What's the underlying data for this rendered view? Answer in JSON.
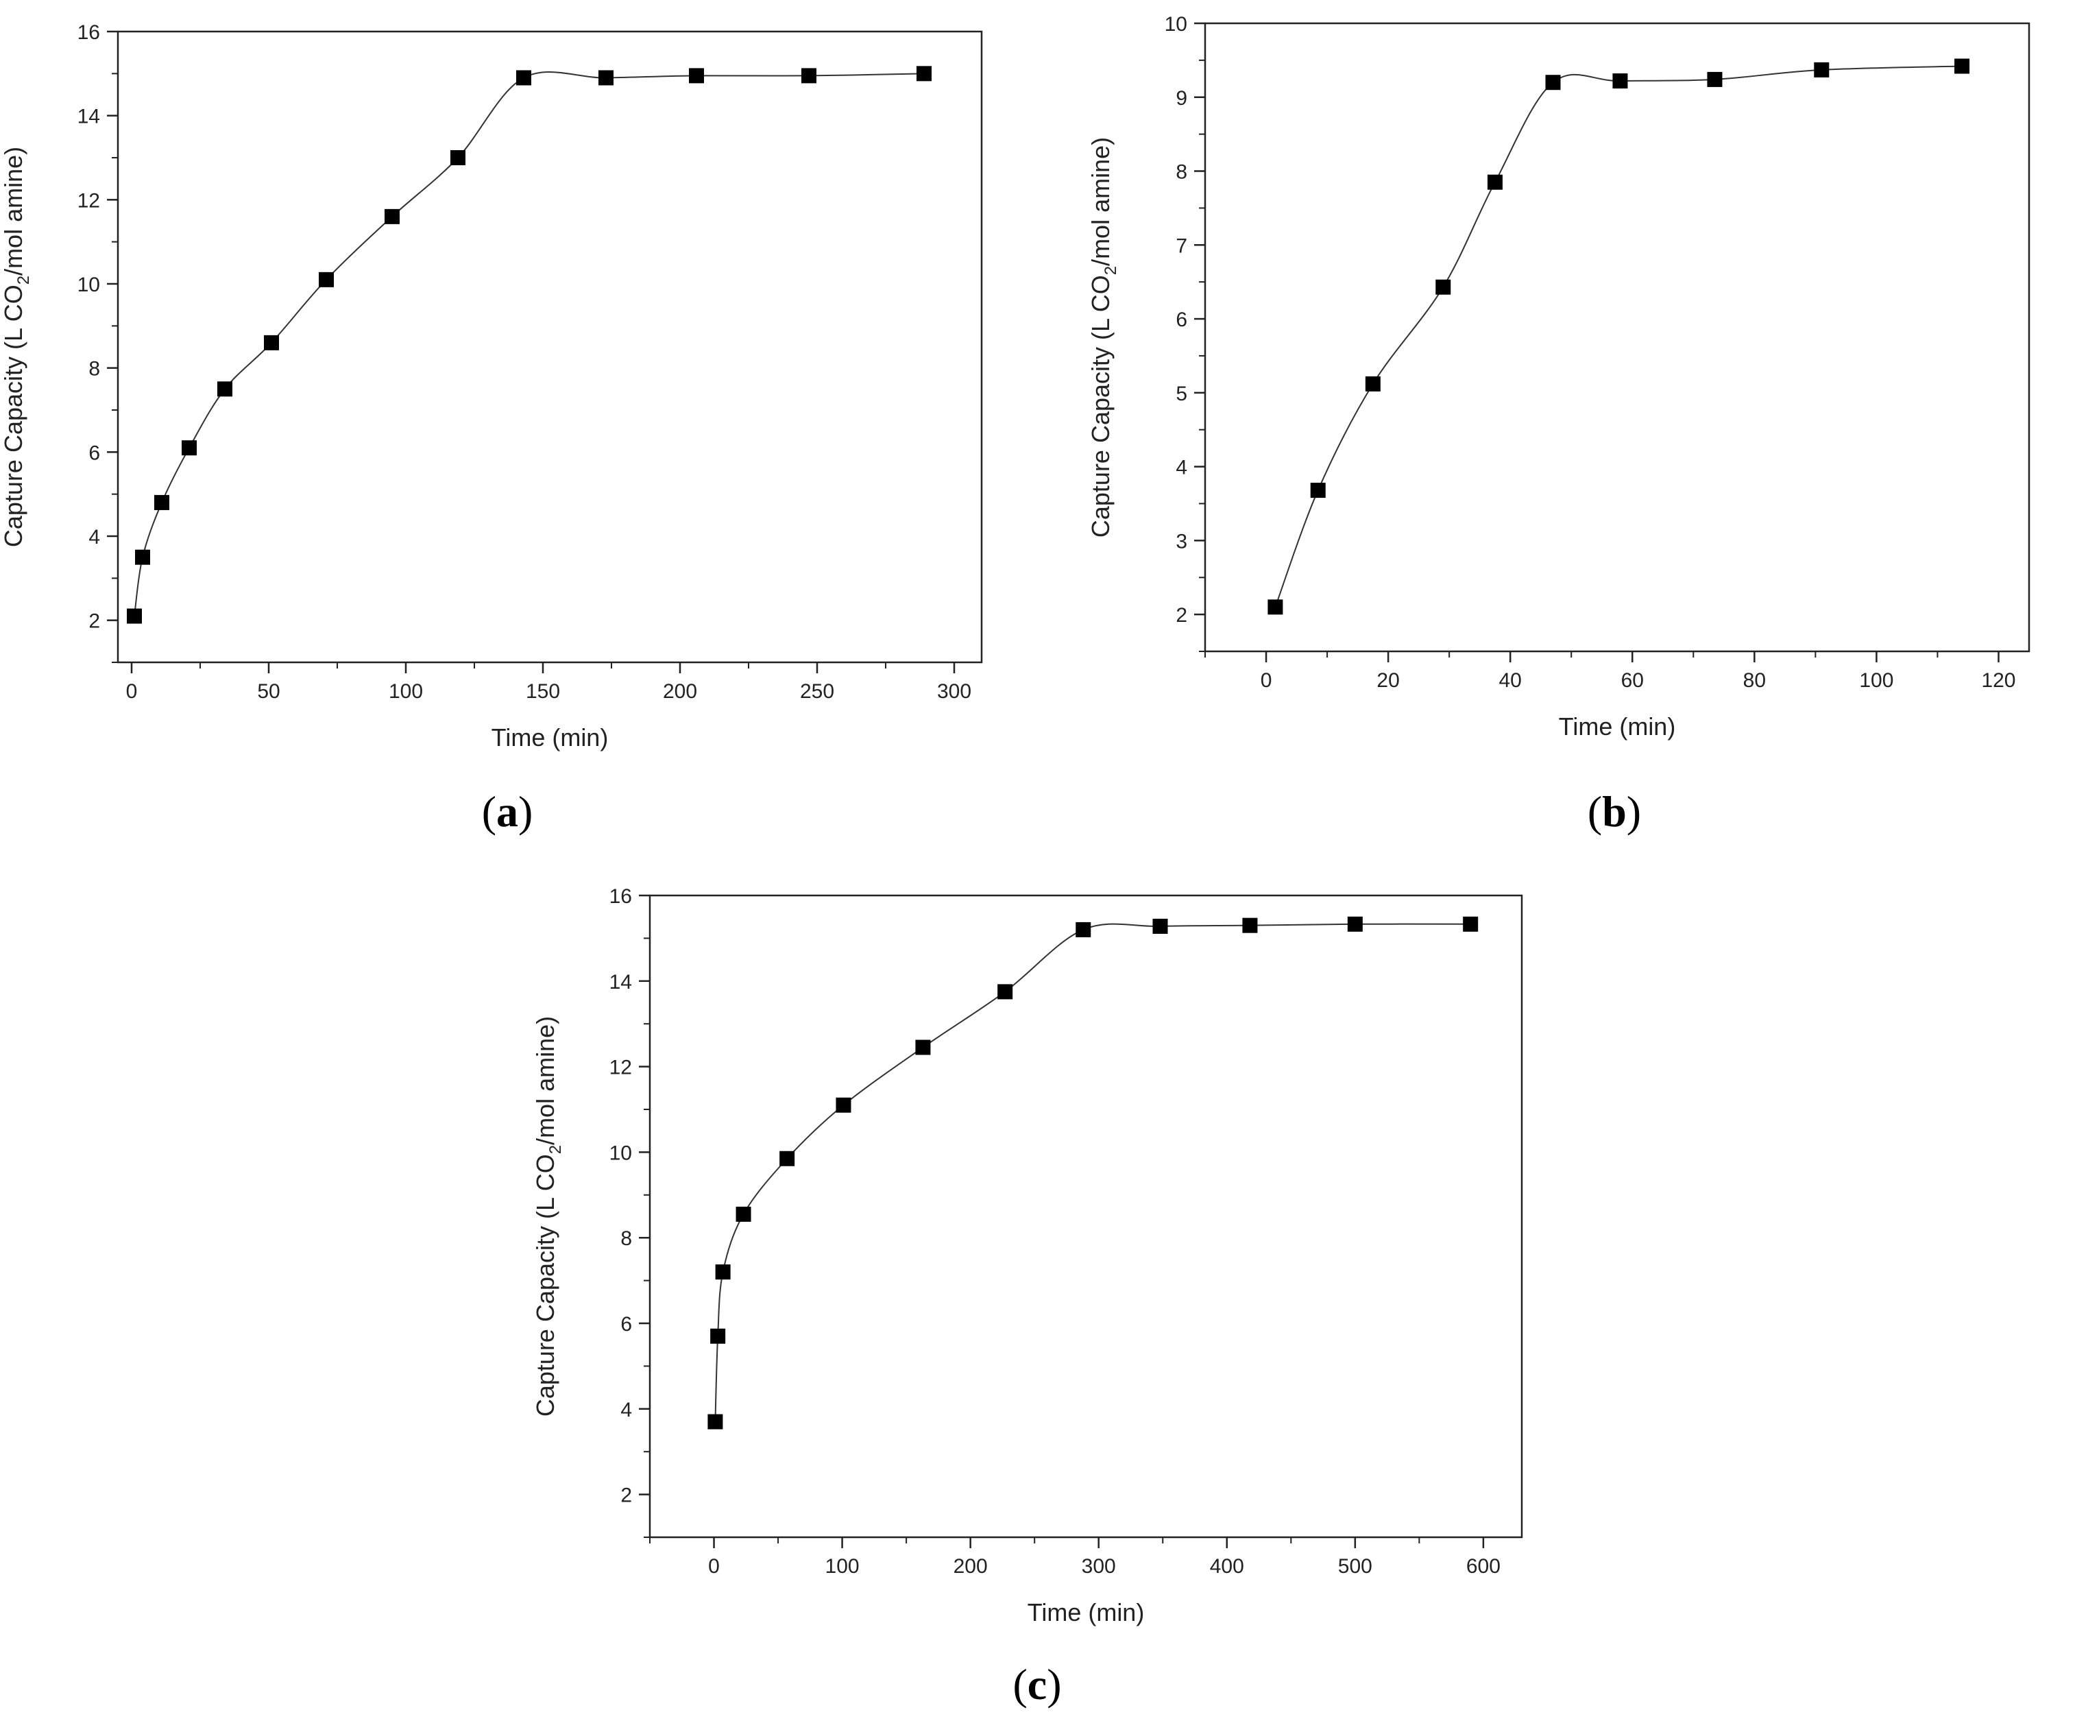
{
  "chart_data": [
    {
      "type": "line",
      "panel_label": "a",
      "xlabel": "Time (min)",
      "ylabel_prefix": "Capture Capacity (L CO",
      "ylabel_sub": "2",
      "ylabel_suffix": "/mol amine)",
      "xlim": [
        -5,
        310
      ],
      "ylim": [
        1,
        16
      ],
      "xticks": [
        0,
        50,
        100,
        150,
        200,
        250,
        300
      ],
      "yticks": [
        2,
        4,
        6,
        8,
        10,
        12,
        14,
        16
      ],
      "marker": "square",
      "line_style": "smooth",
      "series": [
        {
          "x": [
            1,
            4,
            11,
            21,
            34,
            51,
            71,
            95,
            119,
            143,
            173,
            206,
            247,
            289
          ],
          "y": [
            2.1,
            3.5,
            4.8,
            6.1,
            7.5,
            8.6,
            10.1,
            11.6,
            13.0,
            14.9,
            14.9,
            14.95,
            14.95,
            15.0
          ]
        }
      ]
    },
    {
      "type": "line",
      "panel_label": "b",
      "xlabel": "Time (min)",
      "ylabel_prefix": "Capture Capacity (L CO",
      "ylabel_sub": "2",
      "ylabel_suffix": "/mol amine)",
      "xlim": [
        -10,
        125
      ],
      "ylim": [
        1.5,
        10
      ],
      "xticks": [
        0,
        20,
        40,
        60,
        80,
        100,
        120
      ],
      "yticks": [
        2,
        3,
        4,
        5,
        6,
        7,
        8,
        9,
        10
      ],
      "marker": "square",
      "line_style": "smooth",
      "series": [
        {
          "x": [
            1.5,
            8.5,
            17.5,
            29,
            37.5,
            47,
            58,
            73.5,
            91,
            114
          ],
          "y": [
            2.1,
            3.68,
            5.12,
            6.43,
            7.85,
            9.2,
            9.22,
            9.24,
            9.37,
            9.42
          ]
        }
      ]
    },
    {
      "type": "line",
      "panel_label": "c",
      "xlabel": "Time (min)",
      "ylabel_prefix": "Capture Capacity (L CO",
      "ylabel_sub": "2",
      "ylabel_suffix": "/mol amine)",
      "xlim": [
        -50,
        630
      ],
      "ylim": [
        1,
        16
      ],
      "xticks": [
        0,
        100,
        200,
        300,
        400,
        500,
        600
      ],
      "yticks": [
        2,
        4,
        6,
        8,
        10,
        12,
        14,
        16
      ],
      "marker": "square",
      "line_style": "smooth",
      "series": [
        {
          "x": [
            1,
            3,
            7,
            23,
            57,
            101,
            163,
            227,
            288,
            348,
            418,
            500,
            590
          ],
          "y": [
            3.7,
            5.7,
            7.2,
            8.55,
            9.85,
            11.1,
            12.45,
            13.75,
            15.2,
            15.28,
            15.3,
            15.33,
            15.33
          ]
        }
      ]
    }
  ]
}
